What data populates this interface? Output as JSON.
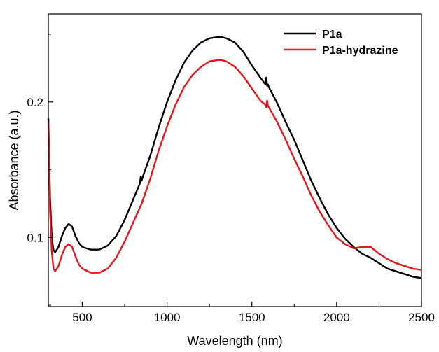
{
  "chart_data": {
    "type": "line",
    "title": "",
    "xlabel": "Wavelength (nm)",
    "ylabel": "Absorbance (a.u.)",
    "xlim": [
      300,
      2500
    ],
    "ylim": [
      0.049,
      0.265
    ],
    "xticks": [
      500,
      1000,
      1500,
      2000,
      2500
    ],
    "xtick_labels": [
      "500",
      "1000",
      "1500",
      "2000",
      "2500"
    ],
    "yticks": [
      0.1,
      0.2
    ],
    "ytick_labels": [
      "0.1",
      "0.2"
    ],
    "grid": false,
    "legend_position": "top-right",
    "series": [
      {
        "name": "P1a",
        "color": "#000000",
        "x": [
          300,
          305,
          310,
          320,
          330,
          340,
          360,
          380,
          400,
          420,
          440,
          460,
          480,
          500,
          550,
          600,
          650,
          700,
          750,
          800,
          840,
          845,
          850,
          855,
          860,
          900,
          950,
          1000,
          1050,
          1100,
          1150,
          1200,
          1250,
          1300,
          1320,
          1350,
          1400,
          1450,
          1500,
          1550,
          1580,
          1585,
          1590,
          1595,
          1600,
          1650,
          1700,
          1750,
          1800,
          1850,
          1900,
          1950,
          2000,
          2050,
          2100,
          2150,
          2200,
          2250,
          2300,
          2350,
          2400,
          2450,
          2500
        ],
        "y": [
          0.188,
          0.16,
          0.13,
          0.1,
          0.091,
          0.089,
          0.093,
          0.101,
          0.107,
          0.11,
          0.108,
          0.101,
          0.096,
          0.093,
          0.091,
          0.091,
          0.094,
          0.101,
          0.113,
          0.128,
          0.14,
          0.145,
          0.142,
          0.144,
          0.146,
          0.16,
          0.181,
          0.2,
          0.216,
          0.229,
          0.238,
          0.244,
          0.247,
          0.248,
          0.248,
          0.247,
          0.244,
          0.237,
          0.227,
          0.218,
          0.213,
          0.218,
          0.212,
          0.213,
          0.211,
          0.199,
          0.185,
          0.172,
          0.157,
          0.142,
          0.129,
          0.117,
          0.107,
          0.099,
          0.093,
          0.088,
          0.085,
          0.081,
          0.077,
          0.075,
          0.073,
          0.071,
          0.07
        ]
      },
      {
        "name": "P1a-hydrazine",
        "color": "#e8141b",
        "x": [
          300,
          305,
          310,
          320,
          330,
          340,
          360,
          380,
          400,
          420,
          440,
          460,
          480,
          500,
          550,
          600,
          650,
          700,
          750,
          800,
          850,
          900,
          950,
          1000,
          1050,
          1100,
          1150,
          1200,
          1250,
          1300,
          1320,
          1350,
          1400,
          1450,
          1500,
          1550,
          1580,
          1585,
          1590,
          1595,
          1600,
          1650,
          1700,
          1750,
          1800,
          1850,
          1900,
          1950,
          2000,
          2050,
          2100,
          2150,
          2200,
          2250,
          2300,
          2350,
          2400,
          2450,
          2500
        ],
        "y": [
          0.185,
          0.155,
          0.12,
          0.09,
          0.077,
          0.075,
          0.079,
          0.087,
          0.093,
          0.095,
          0.093,
          0.086,
          0.08,
          0.077,
          0.074,
          0.074,
          0.077,
          0.085,
          0.097,
          0.111,
          0.125,
          0.143,
          0.164,
          0.182,
          0.198,
          0.211,
          0.22,
          0.226,
          0.23,
          0.231,
          0.231,
          0.23,
          0.226,
          0.219,
          0.21,
          0.201,
          0.198,
          0.196,
          0.201,
          0.197,
          0.196,
          0.185,
          0.172,
          0.158,
          0.145,
          0.131,
          0.119,
          0.109,
          0.1,
          0.095,
          0.092,
          0.093,
          0.093,
          0.088,
          0.084,
          0.081,
          0.079,
          0.077,
          0.076
        ]
      }
    ]
  }
}
